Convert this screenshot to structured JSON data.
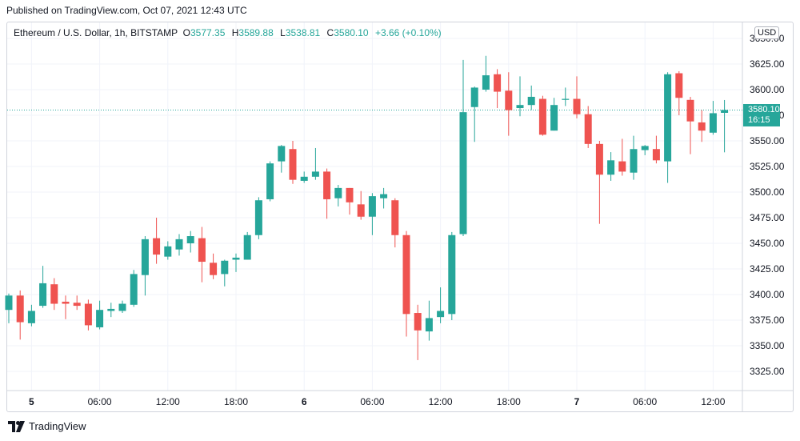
{
  "published": "Published on TradingView.com, Oct 07, 2021 12:43 UTC",
  "legend": {
    "symbol": "Ethereum / U.S. Dollar, 1h, BITSTAMP",
    "open_key": "O",
    "open": "3577.35",
    "high_key": "H",
    "high": "3589.88",
    "low_key": "L",
    "low": "3538.81",
    "close_key": "C",
    "close": "3580.10",
    "change": "+3.66 (+0.10%)"
  },
  "currency_badge": "USD",
  "last_price": {
    "price": "3580.10",
    "countdown": "16:15"
  },
  "footer": {
    "brand": "TradingView"
  },
  "colors": {
    "up": "#26a69a",
    "down": "#ef5350",
    "grid": "#f0f3fa",
    "axis_text": "#131722"
  },
  "chart_data": {
    "type": "candlestick",
    "title": "Ethereum / U.S. Dollar, 1h, BITSTAMP",
    "ylim": [
      3300,
      3640
    ],
    "y_ticks": [
      3325,
      3350,
      3375,
      3400,
      3425,
      3450,
      3475,
      3500,
      3525,
      3550,
      3575,
      3600,
      3625,
      3650
    ],
    "y_tick_labels": [
      "3325.00",
      "3350.00",
      "3375.00",
      "3400.00",
      "3425.00",
      "3450.00",
      "3475.00",
      "3500.00",
      "3525.00",
      "3550.00",
      "3575.00",
      "3600.00",
      "3625.00",
      "3650.00"
    ],
    "x_ticks": [
      {
        "index": 2,
        "label": "5",
        "bold": true
      },
      {
        "index": 8,
        "label": "06:00",
        "bold": false
      },
      {
        "index": 14,
        "label": "12:00",
        "bold": false
      },
      {
        "index": 20,
        "label": "18:00",
        "bold": false
      },
      {
        "index": 26,
        "label": "6",
        "bold": true
      },
      {
        "index": 32,
        "label": "06:00",
        "bold": false
      },
      {
        "index": 38,
        "label": "12:00",
        "bold": false
      },
      {
        "index": 44,
        "label": "18:00",
        "bold": false
      },
      {
        "index": 50,
        "label": "7",
        "bold": true
      },
      {
        "index": 56,
        "label": "06:00",
        "bold": false
      },
      {
        "index": 62,
        "label": "12:00",
        "bold": false
      }
    ],
    "candles": [
      {
        "o": 3385,
        "h": 3401,
        "l": 3372,
        "c": 3399
      },
      {
        "o": 3399,
        "h": 3404,
        "l": 3356,
        "c": 3373
      },
      {
        "o": 3372,
        "h": 3390,
        "l": 3369,
        "c": 3384
      },
      {
        "o": 3389,
        "h": 3428,
        "l": 3387,
        "c": 3411
      },
      {
        "o": 3410,
        "h": 3416,
        "l": 3385,
        "c": 3391
      },
      {
        "o": 3393,
        "h": 3399,
        "l": 3376,
        "c": 3391
      },
      {
        "o": 3392,
        "h": 3399,
        "l": 3385,
        "c": 3389
      },
      {
        "o": 3391,
        "h": 3395,
        "l": 3365,
        "c": 3370
      },
      {
        "o": 3368,
        "h": 3394,
        "l": 3366,
        "c": 3385
      },
      {
        "o": 3384,
        "h": 3392,
        "l": 3378,
        "c": 3386
      },
      {
        "o": 3384,
        "h": 3394,
        "l": 3382,
        "c": 3391
      },
      {
        "o": 3390,
        "h": 3424,
        "l": 3388,
        "c": 3420
      },
      {
        "o": 3419,
        "h": 3457,
        "l": 3399,
        "c": 3454
      },
      {
        "o": 3455,
        "h": 3475,
        "l": 3430,
        "c": 3439
      },
      {
        "o": 3437,
        "h": 3452,
        "l": 3434,
        "c": 3447
      },
      {
        "o": 3444,
        "h": 3459,
        "l": 3438,
        "c": 3454
      },
      {
        "o": 3450,
        "h": 3462,
        "l": 3441,
        "c": 3457
      },
      {
        "o": 3455,
        "h": 3466,
        "l": 3412,
        "c": 3432
      },
      {
        "o": 3431,
        "h": 3440,
        "l": 3415,
        "c": 3419
      },
      {
        "o": 3420,
        "h": 3434,
        "l": 3408,
        "c": 3433
      },
      {
        "o": 3434,
        "h": 3440,
        "l": 3422,
        "c": 3436
      },
      {
        "o": 3434,
        "h": 3461,
        "l": 3434,
        "c": 3458
      },
      {
        "o": 3458,
        "h": 3495,
        "l": 3454,
        "c": 3492
      },
      {
        "o": 3493,
        "h": 3530,
        "l": 3491,
        "c": 3528
      },
      {
        "o": 3530,
        "h": 3546,
        "l": 3519,
        "c": 3545
      },
      {
        "o": 3542,
        "h": 3550,
        "l": 3508,
        "c": 3512
      },
      {
        "o": 3511,
        "h": 3520,
        "l": 3509,
        "c": 3515
      },
      {
        "o": 3515,
        "h": 3543,
        "l": 3512,
        "c": 3520
      },
      {
        "o": 3520,
        "h": 3523,
        "l": 3474,
        "c": 3493
      },
      {
        "o": 3494,
        "h": 3507,
        "l": 3486,
        "c": 3504
      },
      {
        "o": 3504,
        "h": 3504,
        "l": 3478,
        "c": 3490
      },
      {
        "o": 3488,
        "h": 3501,
        "l": 3473,
        "c": 3476
      },
      {
        "o": 3476,
        "h": 3499,
        "l": 3458,
        "c": 3496
      },
      {
        "o": 3494,
        "h": 3504,
        "l": 3484,
        "c": 3498
      },
      {
        "o": 3492,
        "h": 3494,
        "l": 3446,
        "c": 3458
      },
      {
        "o": 3458,
        "h": 3462,
        "l": 3359,
        "c": 3381
      },
      {
        "o": 3382,
        "h": 3390,
        "l": 3336,
        "c": 3365
      },
      {
        "o": 3364,
        "h": 3394,
        "l": 3355,
        "c": 3377
      },
      {
        "o": 3378,
        "h": 3407,
        "l": 3372,
        "c": 3384
      },
      {
        "o": 3381,
        "h": 3461,
        "l": 3375,
        "c": 3458
      },
      {
        "o": 3459,
        "h": 3629,
        "l": 3457,
        "c": 3578
      },
      {
        "o": 3583,
        "h": 3603,
        "l": 3549,
        "c": 3602
      },
      {
        "o": 3600,
        "h": 3633,
        "l": 3598,
        "c": 3614
      },
      {
        "o": 3615,
        "h": 3620,
        "l": 3582,
        "c": 3598
      },
      {
        "o": 3599,
        "h": 3617,
        "l": 3555,
        "c": 3580
      },
      {
        "o": 3582,
        "h": 3613,
        "l": 3574,
        "c": 3585
      },
      {
        "o": 3585,
        "h": 3604,
        "l": 3580,
        "c": 3593
      },
      {
        "o": 3591,
        "h": 3594,
        "l": 3555,
        "c": 3556
      },
      {
        "o": 3560,
        "h": 3592,
        "l": 3560,
        "c": 3585
      },
      {
        "o": 3590,
        "h": 3602,
        "l": 3584,
        "c": 3591
      },
      {
        "o": 3591,
        "h": 3613,
        "l": 3572,
        "c": 3576
      },
      {
        "o": 3576,
        "h": 3584,
        "l": 3543,
        "c": 3547
      },
      {
        "o": 3547,
        "h": 3550,
        "l": 3469,
        "c": 3517
      },
      {
        "o": 3517,
        "h": 3539,
        "l": 3511,
        "c": 3531
      },
      {
        "o": 3530,
        "h": 3552,
        "l": 3516,
        "c": 3520
      },
      {
        "o": 3519,
        "h": 3555,
        "l": 3512,
        "c": 3542
      },
      {
        "o": 3541,
        "h": 3546,
        "l": 3536,
        "c": 3545
      },
      {
        "o": 3542,
        "h": 3555,
        "l": 3528,
        "c": 3531
      },
      {
        "o": 3530,
        "h": 3617,
        "l": 3509,
        "c": 3615
      },
      {
        "o": 3616,
        "h": 3618,
        "l": 3575,
        "c": 3592
      },
      {
        "o": 3590,
        "h": 3593,
        "l": 3537,
        "c": 3569
      },
      {
        "o": 3568,
        "h": 3580,
        "l": 3549,
        "c": 3560
      },
      {
        "o": 3558,
        "h": 3589,
        "l": 3556,
        "c": 3577
      },
      {
        "o": 3577.35,
        "h": 3589.88,
        "l": 3538.81,
        "c": 3580.1
      }
    ]
  }
}
